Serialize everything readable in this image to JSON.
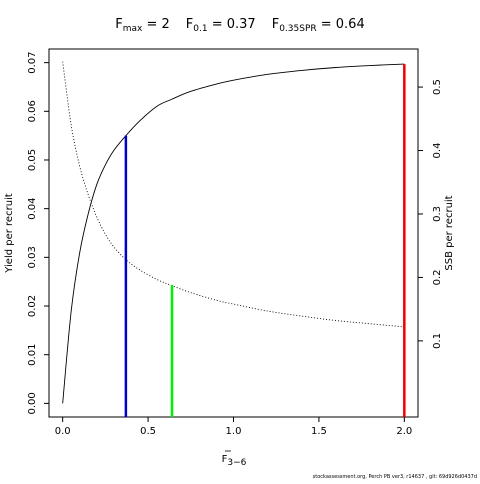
{
  "chart_data": {
    "type": "line",
    "title": {
      "fmax_label": "F",
      "fmax_sub": "max",
      "fmax_value": " = 2",
      "f01_label": "F",
      "f01_sub": "0.1",
      "f01_value": " = 0.37",
      "fspr_label": "F",
      "fspr_sub": "0.35SPR",
      "fspr_value": " = 0.64"
    },
    "xlabel": {
      "main": "F",
      "sub": "3−6"
    },
    "ylabel": "Yield per recruit",
    "y2label": "SSB per recruit",
    "xlim": [
      -0.08,
      2.08
    ],
    "ylim": [
      -0.0028,
      0.0728
    ],
    "y2lim": [
      -0.02,
      0.56
    ],
    "xticks": [
      0,
      0.5,
      1,
      1.5,
      2
    ],
    "xtick_labels": [
      "0.0",
      "0.5",
      "1.0",
      "1.5",
      "2.0"
    ],
    "yticks": [
      0,
      0.01,
      0.02,
      0.03,
      0.04,
      0.05,
      0.06,
      0.07
    ],
    "ytick_labels": [
      "0.00",
      "0.01",
      "0.02",
      "0.03",
      "0.04",
      "0.05",
      "0.06",
      "0.07"
    ],
    "y2ticks": [
      0.1,
      0.2,
      0.3,
      0.4,
      0.5
    ],
    "y2tick_labels": [
      "0.1",
      "0.2",
      "0.3",
      "0.4",
      "0.5"
    ],
    "series": [
      {
        "style": "solid",
        "axis": "left",
        "x": [
          0,
          0.05,
          0.1,
          0.15,
          0.2,
          0.25,
          0.3,
          0.37,
          0.45,
          0.55,
          0.64,
          0.75,
          0.9,
          1.0,
          1.2,
          1.4,
          1.6,
          1.8,
          2.0
        ],
        "y": [
          0,
          0.019,
          0.031,
          0.039,
          0.045,
          0.049,
          0.052,
          0.055,
          0.058,
          0.061,
          0.0625,
          0.0641,
          0.0656,
          0.0664,
          0.0676,
          0.0684,
          0.069,
          0.0694,
          0.0697
        ]
      },
      {
        "style": "dotted",
        "axis": "right",
        "x": [
          0,
          0.05,
          0.1,
          0.15,
          0.2,
          0.25,
          0.3,
          0.37,
          0.45,
          0.55,
          0.64,
          0.75,
          0.9,
          1.0,
          1.2,
          1.4,
          1.6,
          1.8,
          2.0
        ],
        "y": [
          0.54,
          0.44,
          0.375,
          0.33,
          0.295,
          0.268,
          0.248,
          0.228,
          0.212,
          0.197,
          0.187,
          0.176,
          0.164,
          0.158,
          0.147,
          0.139,
          0.132,
          0.127,
          0.122
        ]
      }
    ],
    "vlines": [
      {
        "x": 0.37,
        "y_top": 0.055,
        "color": "#0000cc"
      },
      {
        "x": 0.64,
        "y_top": 0.0243,
        "color": "#00ee00"
      },
      {
        "x": 2.0,
        "y_top": 0.0697,
        "color": "#ee0000"
      }
    ],
    "grid": false
  },
  "footer": "stockassessment.org, Perch PB ver3, r14637 , git: 69d926d0437d"
}
